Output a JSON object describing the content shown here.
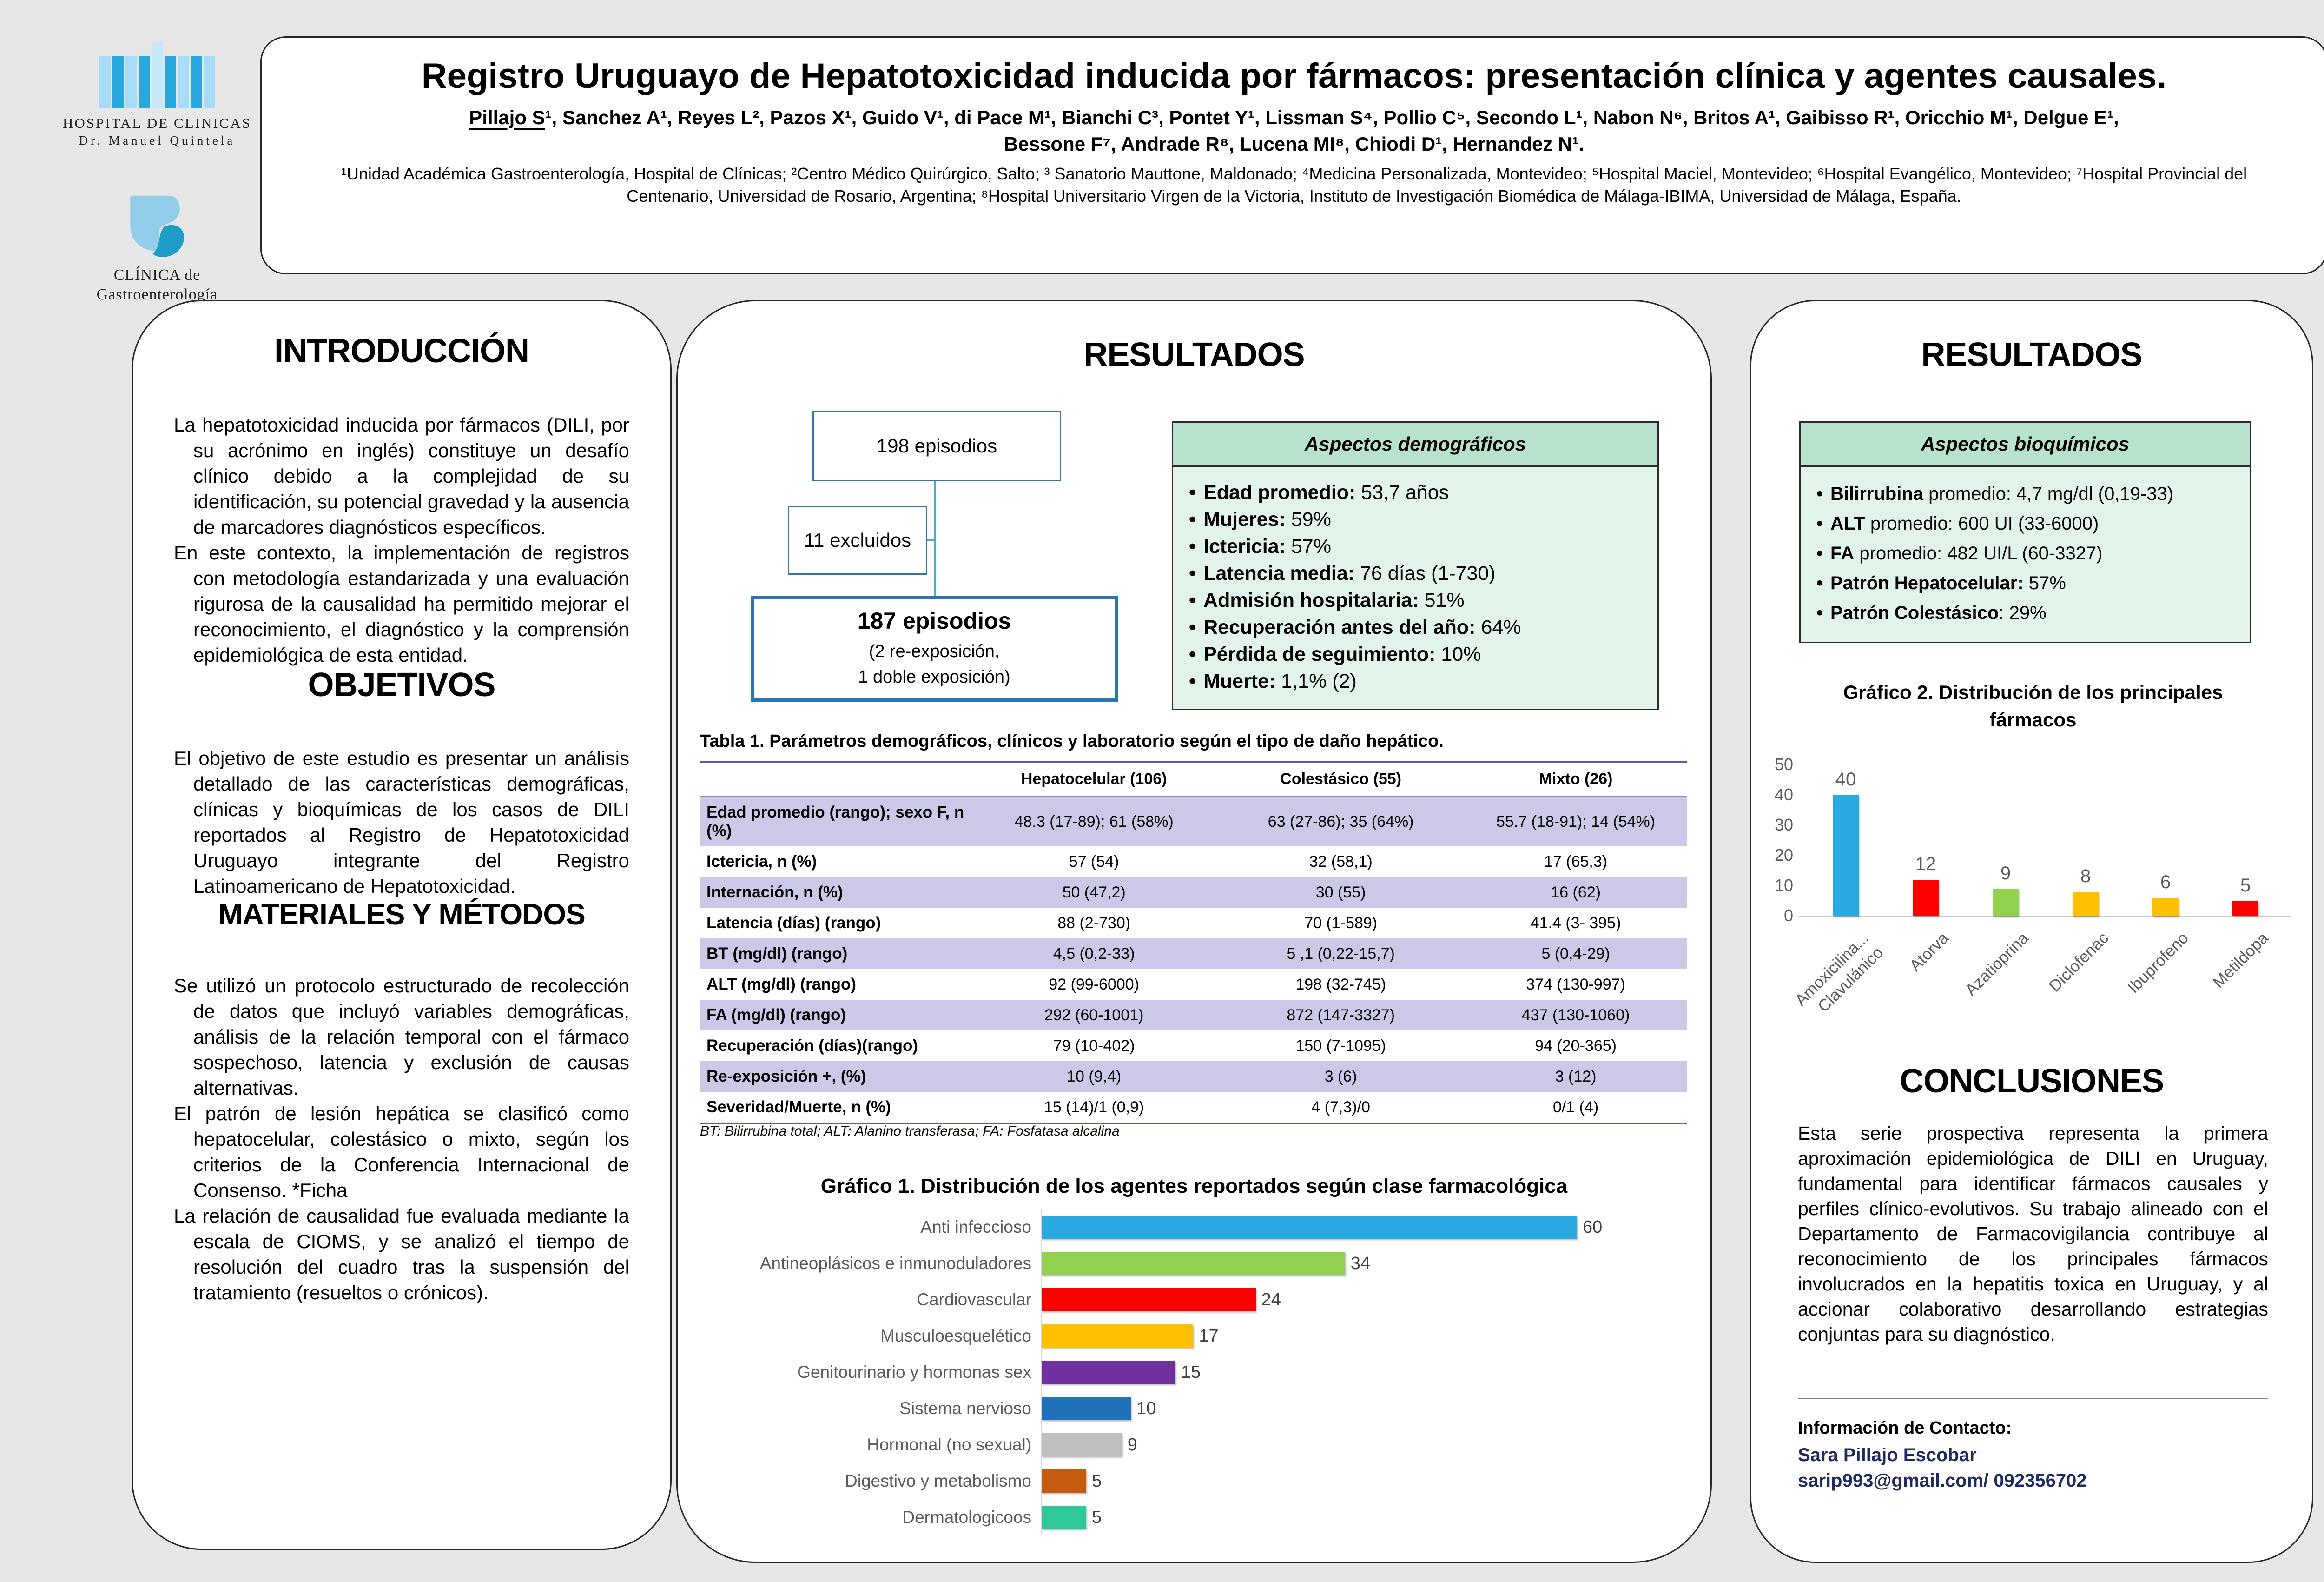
{
  "logos": {
    "hospital": {
      "line1": "HOSPITAL DE CLINICAS",
      "line2": "Dr. Manuel Quintela"
    },
    "clinica": {
      "line1": "CLÍNICA de",
      "line2": "Gastroenterología"
    }
  },
  "header": {
    "title": "Registro Uruguayo de Hepatotoxicidad inducida por fármacos: presentación clínica y agentes causales.",
    "authors": {
      "presenter": "Pillajo S",
      "line1_rest": "¹, Sanchez A¹, Reyes L², Pazos X¹, Guido V¹, di Pace M¹, Bianchi C³, Pontet Y¹, Lissman S⁴, Pollio C⁵, Secondo L¹, Nabon N⁶, Britos A¹, Gaibisso R¹, Oricchio M¹, Delgue E¹,",
      "line2": "Bessone F⁷, Andrade R⁸, Lucena MI⁸, Chiodi D¹, Hernandez N¹."
    },
    "affiliations": "¹Unidad Académica Gastroenterología, Hospital de Clínicas; ²Centro Médico Quirúrgico, Salto; ³ Sanatorio Mauttone, Maldonado; ⁴Medicina Personalizada, Montevideo; ⁵Hospital Maciel, Montevideo; ⁶Hospital Evangélico, Montevideo; ⁷Hospital Provincial del Centenario, Universidad de Rosario, Argentina; ⁸Hospital Universitario Virgen de la Victoria, Instituto de Investigación Biomédica de Málaga-IBIMA, Universidad de Málaga, España."
  },
  "left": {
    "intro_title": "INTRODUCCIÓN",
    "intro_paragraphs": [
      "La hepatotoxicidad inducida por fármacos (DILI, por su acrónimo en inglés) constituye un desafío clínico debido a la complejidad de su identificación, su potencial gravedad y la ausencia de marcadores diagnósticos específicos.",
      "En este contexto, la implementación de registros con metodología estandarizada y una evaluación rigurosa de la causalidad ha permitido mejorar el reconocimiento, el diagnóstico y la comprensión epidemiológica de esta entidad."
    ],
    "objetivos_title": "OBJETIVOS",
    "objetivos_paragraphs": [
      "El objetivo de este estudio es presentar un análisis detallado de las características demográficas, clínicas y bioquímicas de los casos de DILI reportados al Registro de Hepatotoxicidad Uruguayo integrante del Registro Latinoamericano de Hepatotoxicidad."
    ],
    "metodos_title": "MATERIALES Y MÉTODOS",
    "metodos_paragraphs": [
      "Se utilizó un protocolo estructurado de recolección de datos que incluyó variables demográficas, análisis de la relación temporal con el fármaco sospechoso, latencia y exclusión de causas alternativas.",
      "El patrón de lesión hepática se clasificó como hepatocelular, colestásico o mixto, según los criterios de la Conferencia Internacional de Consenso. *Ficha",
      "La relación de causalidad fue evaluada mediante la escala de CIOMS, y se analizó el tiempo de resolución del cuadro tras la suspensión del tratamiento (resueltos o crónicos)."
    ]
  },
  "middle": {
    "title": "RESULTADOS",
    "flowchart": {
      "box_total": "198 episodios",
      "box_excluded": "11 excluidos",
      "box_included": "187 episodios",
      "box_included_sub1": "(2 re-exposición,",
      "box_included_sub2": "1 doble exposición)"
    },
    "demographics": {
      "title": "Aspectos demográficos",
      "items": [
        {
          "label": "Edad promedio:",
          "value": "53,7 años"
        },
        {
          "label": "Mujeres:",
          "value": "59%"
        },
        {
          "label": "Ictericia:",
          "value": "57%"
        },
        {
          "label": "Latencia media:",
          "value": "76 días (1-730)"
        },
        {
          "label": "Admisión hospitalaria:",
          "value": "51%"
        },
        {
          "label": "Recuperación antes del año:",
          "value": "64%"
        },
        {
          "label": "Pérdida de seguimiento:",
          "value": "10%"
        },
        {
          "label": "Muerte:",
          "value": "1,1% (2)"
        }
      ]
    },
    "table": {
      "title": "Tabla 1. Parámetros demográficos, clínicos y laboratorio según el tipo de daño hepático.",
      "columns": [
        "",
        "Hepatocelular (106)",
        "Colestásico (55)",
        "Mixto (26)"
      ],
      "rows": [
        [
          "Edad promedio (rango); sexo F, n (%)",
          "48.3 (17-89); 61 (58%)",
          "63 (27-86); 35 (64%)",
          "55.7 (18-91); 14 (54%)"
        ],
        [
          "Ictericia, n (%)",
          "57 (54)",
          "32 (58,1)",
          "17 (65,3)"
        ],
        [
          "Internación, n (%)",
          "50 (47,2)",
          "30 (55)",
          "16 (62)"
        ],
        [
          "Latencia (días) (rango)",
          "88 (2-730)",
          "70 (1-589)",
          "41.4 (3- 395)"
        ],
        [
          "BT (mg/dl) (rango)",
          "4,5 (0,2-33)",
          "5 ,1 (0,22-15,7)",
          "5 (0,4-29)"
        ],
        [
          "ALT (mg/dl) (rango)",
          "92 (99-6000)",
          "198 (32-745)",
          "374 (130-997)"
        ],
        [
          "FA (mg/dl) (rango)",
          "292 (60-1001)",
          "872 (147-3327)",
          "437 (130-1060)"
        ],
        [
          "Recuperación (días)(rango)",
          "79 (10-402)",
          "150 (7-1095)",
          "94 (20-365)"
        ],
        [
          "Re-exposición +, (%)",
          "10 (9,4)",
          "3 (6)",
          "3 (12)"
        ],
        [
          "Severidad/Muerte, n (%)",
          "15 (14)/1 (0,9)",
          "4 (7,3)/0",
          "0/1 (4)"
        ]
      ],
      "footnote": "BT: Bilirrubina total; ALT: Alanino transferasa; FA: Fosfatasa alcalina"
    }
  },
  "right": {
    "title": "RESULTADOS",
    "biochem": {
      "title": "Aspectos bioquímicos",
      "items": [
        {
          "label": "Bilirrubina",
          "value": " promedio: 4,7 mg/dl (0,19-33)"
        },
        {
          "label": "ALT",
          "value": " promedio: 600 UI (33-6000)"
        },
        {
          "label": "FA",
          "value": " promedio: 482 UI/L (60-3327)"
        },
        {
          "label": "Patrón Hepatocelular:",
          "value": " 57%"
        },
        {
          "label": "Patrón Colestásico",
          "value": ": 29%"
        }
      ]
    },
    "conclusiones_title": "CONCLUSIONES",
    "conclusiones_paragraphs": [
      "Esta serie prospectiva representa la primera aproximación epidemiológica de DILI en Uruguay, fundamental para identificar fármacos causales y perfiles clínico-evolutivos. Su trabajo alineado con el Departamento de Farmacovigilancia contribuye al reconocimiento de los principales fármacos involucrados en la hepatitis toxica en Uruguay, y al accionar colaborativo desarrollando estrategias conjuntas para su diagnóstico."
    ],
    "contact": {
      "heading": "Información de Contacto:",
      "name": "Sara Pillajo Escobar",
      "email": "sarip993@gmail.com/ 092356702"
    }
  },
  "chart_data": [
    {
      "type": "bar",
      "orientation": "horizontal",
      "title": "Gráfico 1. Distribución de los agentes reportados según clase farmacológica",
      "categories": [
        "Anti infeccioso",
        "Antineoplásicos e  inmunoduladores",
        "Cardiovascular",
        "Musculoesquelético",
        "Genitourinario y hormonas sex",
        "Sistema nervioso",
        "Hormonal (no sexual)",
        "Digestivo y metabolismo",
        "Dermatologicoos"
      ],
      "values": [
        60,
        34,
        24,
        17,
        15,
        10,
        9,
        5,
        5
      ],
      "colors": [
        "#29abe2",
        "#92d050",
        "#ff0000",
        "#ffc000",
        "#7030a0",
        "#1f72b8",
        "#bfbfbf",
        "#c55a11",
        "#2ec998"
      ],
      "xlim": [
        0,
        62
      ],
      "value_labels": true,
      "grid": false,
      "legend": "none"
    },
    {
      "type": "bar",
      "orientation": "vertical",
      "title": "Gráfico 2. Distribución de los principales fármacos",
      "categories": [
        "Amoxicilina...\nClavulánico",
        "Atorva",
        "Azatioprina",
        "Diclofenac",
        "Ibuprofeno",
        "Metildopa"
      ],
      "values": [
        40,
        12,
        9,
        8,
        6,
        5
      ],
      "colors": [
        "#29abe2",
        "#ff0000",
        "#92d050",
        "#ffc000",
        "#ffc000",
        "#ff0000"
      ],
      "ylim": [
        0,
        50
      ],
      "yticks": [
        0,
        10,
        20,
        30,
        40,
        50
      ],
      "value_labels": true,
      "grid": false,
      "legend": "none"
    }
  ]
}
